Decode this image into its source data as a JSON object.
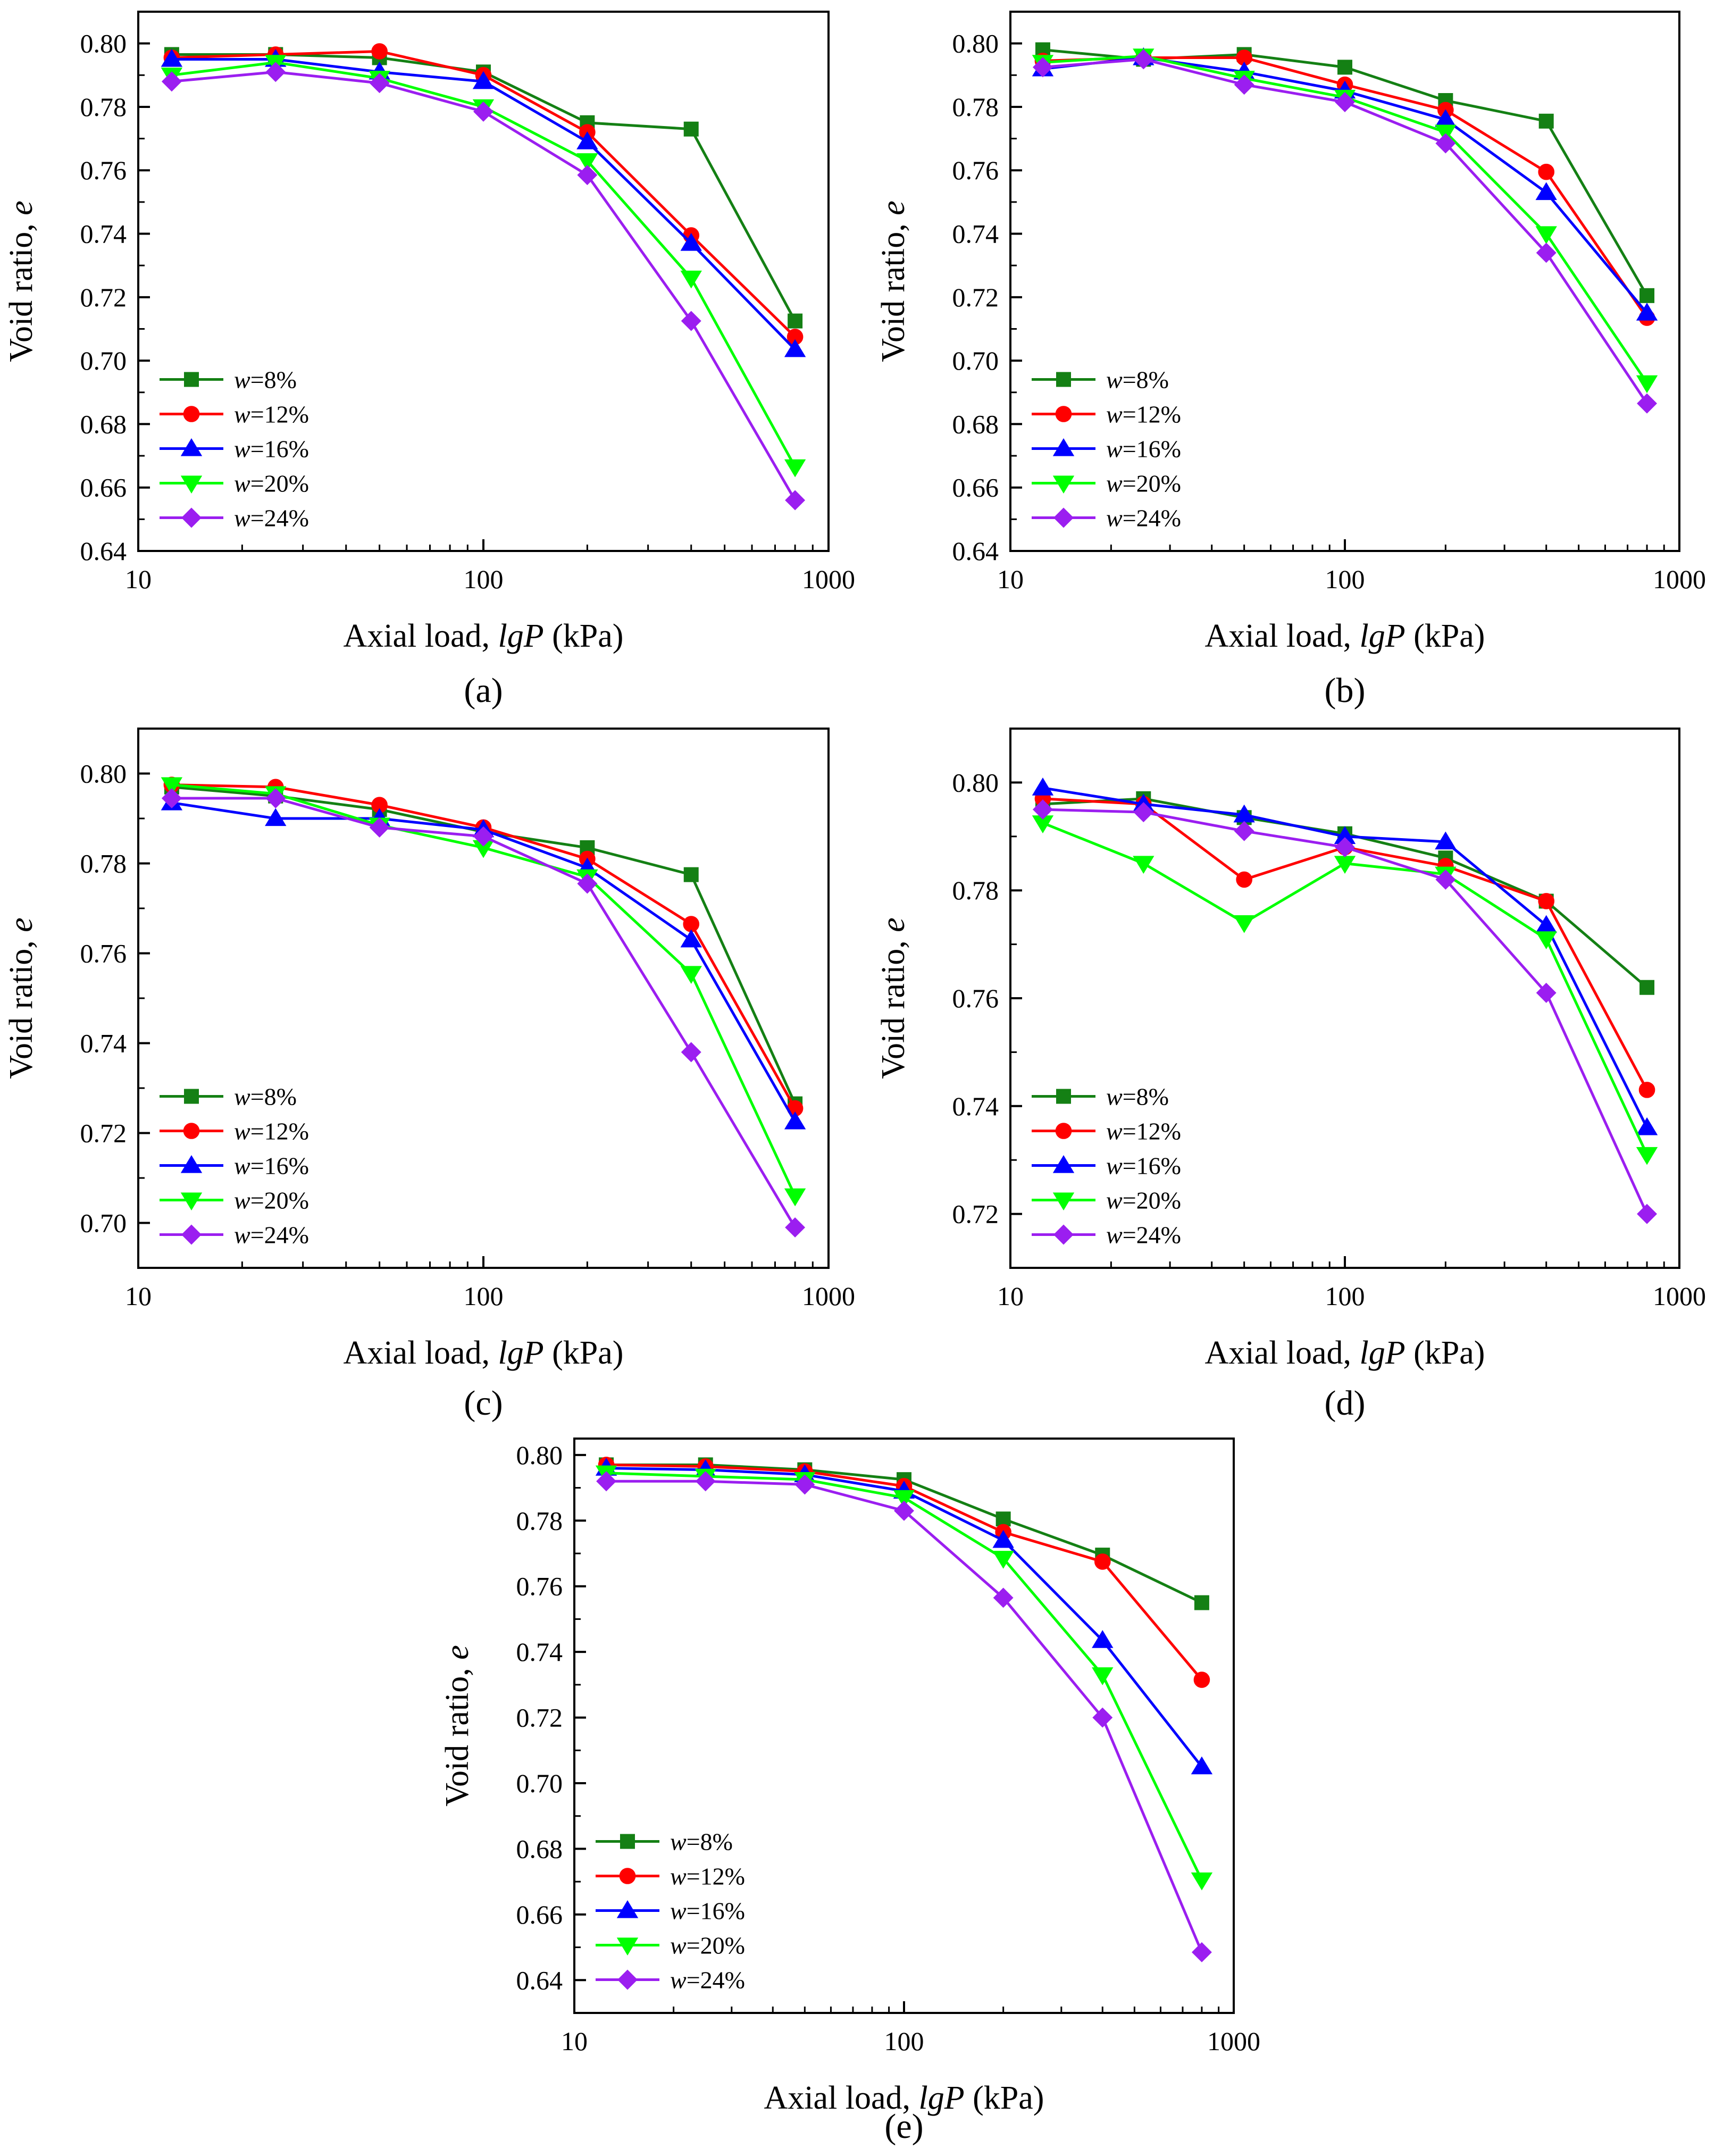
{
  "figure": {
    "panel_labels": [
      "(a)",
      "(b)",
      "(c)",
      "(d)",
      "(e)"
    ]
  },
  "colors": {
    "w8": "#148014",
    "w12": "#ff0000",
    "w16": "#0000ff",
    "w20": "#00ff00",
    "w24": "#9b1ef0"
  },
  "chart_data": [
    {
      "type": "line",
      "panel": "(a)",
      "xlabel": "Axial load, lgP (kPa)",
      "xlabel_parts": [
        "Axial load, ",
        "lgP",
        " (kPa)"
      ],
      "ylabel": "Void ratio, e",
      "ylabel_parts": [
        "Void ratio, ",
        "e"
      ],
      "xscale": "log",
      "xlim": [
        10,
        1000
      ],
      "ylim": [
        0.64,
        0.81
      ],
      "xticks": [
        10,
        100,
        1000
      ],
      "xtick_labels": [
        "10",
        "100",
        "1000"
      ],
      "yticks": [
        0.64,
        0.66,
        0.68,
        0.7,
        0.72,
        0.74,
        0.76,
        0.78,
        0.8
      ],
      "ytick_labels": [
        "0.64",
        "0.66",
        "0.68",
        "0.70",
        "0.72",
        "0.74",
        "0.76",
        "0.78",
        "0.80"
      ],
      "legend_position": "bottom-left",
      "x": [
        12.5,
        25,
        50,
        100,
        200,
        400,
        800
      ],
      "series": [
        {
          "name": "w=8%",
          "name_parts": [
            "w",
            "=8%"
          ],
          "marker": "square",
          "color_key": "w8",
          "values": [
            0.7965,
            0.7965,
            0.7955,
            0.791,
            0.775,
            0.773,
            0.7125
          ]
        },
        {
          "name": "w=12%",
          "name_parts": [
            "w",
            "=12%"
          ],
          "marker": "circle",
          "color_key": "w12",
          "values": [
            0.7955,
            0.7965,
            0.7975,
            0.79,
            0.772,
            0.7395,
            0.7075
          ]
        },
        {
          "name": "w=16%",
          "name_parts": [
            "w",
            "=16%"
          ],
          "marker": "triangle-up",
          "color_key": "w16",
          "values": [
            0.795,
            0.795,
            0.791,
            0.788,
            0.769,
            0.737,
            0.7035
          ]
        },
        {
          "name": "w=20%",
          "name_parts": [
            "w",
            "=20%"
          ],
          "marker": "triangle-down",
          "color_key": "w20",
          "values": [
            0.79,
            0.794,
            0.789,
            0.78,
            0.763,
            0.726,
            0.6665
          ]
        },
        {
          "name": "w=24%",
          "name_parts": [
            "w",
            "=24%"
          ],
          "marker": "diamond",
          "color_key": "w24",
          "values": [
            0.788,
            0.791,
            0.7875,
            0.7785,
            0.7585,
            0.7125,
            0.656
          ]
        }
      ]
    },
    {
      "type": "line",
      "panel": "(b)",
      "xlabel": "Axial load, lgP (kPa)",
      "xlabel_parts": [
        "Axial load, ",
        "lgP",
        " (kPa)"
      ],
      "ylabel": "Void ratio, e",
      "ylabel_parts": [
        "Void ratio, ",
        "e"
      ],
      "xscale": "log",
      "xlim": [
        10,
        1000
      ],
      "ylim": [
        0.64,
        0.81
      ],
      "xticks": [
        10,
        100,
        1000
      ],
      "xtick_labels": [
        "10",
        "100",
        "1000"
      ],
      "yticks": [
        0.64,
        0.66,
        0.68,
        0.7,
        0.72,
        0.74,
        0.76,
        0.78,
        0.8
      ],
      "ytick_labels": [
        "0.64",
        "0.66",
        "0.68",
        "0.70",
        "0.72",
        "0.74",
        "0.76",
        "0.78",
        "0.80"
      ],
      "legend_position": "bottom-left",
      "x": [
        12.5,
        25,
        50,
        100,
        200,
        400,
        800
      ],
      "series": [
        {
          "name": "w=8%",
          "name_parts": [
            "w",
            "=8%"
          ],
          "marker": "square",
          "color_key": "w8",
          "values": [
            0.798,
            0.795,
            0.7965,
            0.7925,
            0.782,
            0.7755,
            0.7205
          ]
        },
        {
          "name": "w=12%",
          "name_parts": [
            "w",
            "=12%"
          ],
          "marker": "circle",
          "color_key": "w12",
          "values": [
            0.7945,
            0.7955,
            0.7955,
            0.787,
            0.779,
            0.7595,
            0.7135
          ]
        },
        {
          "name": "w=16%",
          "name_parts": [
            "w",
            "=16%"
          ],
          "marker": "triangle-up",
          "color_key": "w16",
          "values": [
            0.792,
            0.7955,
            0.791,
            0.785,
            0.776,
            0.753,
            0.715
          ]
        },
        {
          "name": "w=20%",
          "name_parts": [
            "w",
            "=20%"
          ],
          "marker": "triangle-down",
          "color_key": "w20",
          "values": [
            0.794,
            0.796,
            0.789,
            0.783,
            0.772,
            0.74,
            0.693
          ]
        },
        {
          "name": "w=24%",
          "name_parts": [
            "w",
            "=24%"
          ],
          "marker": "diamond",
          "color_key": "w24",
          "values": [
            0.7925,
            0.795,
            0.787,
            0.7815,
            0.7685,
            0.734,
            0.6865
          ]
        }
      ]
    },
    {
      "type": "line",
      "panel": "(c)",
      "xlabel": "Axial load, lgP (kPa)",
      "xlabel_parts": [
        "Axial load, ",
        "lgP",
        " (kPa)"
      ],
      "ylabel": "Void ratio, e",
      "ylabel_parts": [
        "Void ratio, ",
        "e"
      ],
      "xscale": "log",
      "xlim": [
        10,
        1000
      ],
      "ylim": [
        0.69,
        0.81
      ],
      "xticks": [
        10,
        100,
        1000
      ],
      "xtick_labels": [
        "10",
        "100",
        "1000"
      ],
      "yticks": [
        0.7,
        0.72,
        0.74,
        0.76,
        0.78,
        0.8
      ],
      "ytick_labels": [
        "0.70",
        "0.72",
        "0.74",
        "0.76",
        "0.78",
        "0.80"
      ],
      "legend_position": "bottom-left",
      "x": [
        12.5,
        25,
        50,
        100,
        200,
        400,
        800
      ],
      "series": [
        {
          "name": "w=8%",
          "name_parts": [
            "w",
            "=8%"
          ],
          "marker": "square",
          "color_key": "w8",
          "values": [
            0.797,
            0.795,
            0.792,
            0.787,
            0.7835,
            0.7775,
            0.7265
          ]
        },
        {
          "name": "w=12%",
          "name_parts": [
            "w",
            "=12%"
          ],
          "marker": "circle",
          "color_key": "w12",
          "values": [
            0.7975,
            0.797,
            0.793,
            0.788,
            0.781,
            0.7665,
            0.7255
          ]
        },
        {
          "name": "w=16%",
          "name_parts": [
            "w",
            "=16%"
          ],
          "marker": "triangle-up",
          "color_key": "w16",
          "values": [
            0.7935,
            0.79,
            0.79,
            0.7875,
            0.779,
            0.763,
            0.7225
          ]
        },
        {
          "name": "w=20%",
          "name_parts": [
            "w",
            "=20%"
          ],
          "marker": "triangle-down",
          "color_key": "w20",
          "values": [
            0.7975,
            0.7955,
            0.7885,
            0.7835,
            0.777,
            0.7555,
            0.706
          ]
        },
        {
          "name": "w=24%",
          "name_parts": [
            "w",
            "=24%"
          ],
          "marker": "diamond",
          "color_key": "w24",
          "values": [
            0.7945,
            0.7945,
            0.788,
            0.786,
            0.7755,
            0.738,
            0.699
          ]
        }
      ]
    },
    {
      "type": "line",
      "panel": "(d)",
      "xlabel": "Axial load, lgP (kPa)",
      "xlabel_parts": [
        "Axial load, ",
        "lgP",
        " (kPa)"
      ],
      "ylabel": "Void ratio, e",
      "ylabel_parts": [
        "Void ratio, ",
        "e"
      ],
      "xscale": "log",
      "xlim": [
        10,
        1000
      ],
      "ylim": [
        0.71,
        0.81
      ],
      "xticks": [
        10,
        100,
        1000
      ],
      "xtick_labels": [
        "10",
        "100",
        "1000"
      ],
      "yticks": [
        0.72,
        0.74,
        0.76,
        0.78,
        0.8
      ],
      "ytick_labels": [
        "0.72",
        "0.74",
        "0.76",
        "0.78",
        "0.80"
      ],
      "legend_position": "bottom-left",
      "x": [
        12.5,
        25,
        50,
        100,
        200,
        400,
        800
      ],
      "series": [
        {
          "name": "w=8%",
          "name_parts": [
            "w",
            "=8%"
          ],
          "marker": "square",
          "color_key": "w8",
          "values": [
            0.796,
            0.797,
            0.7935,
            0.7905,
            0.786,
            0.778,
            0.762
          ]
        },
        {
          "name": "w=12%",
          "name_parts": [
            "w",
            "=12%"
          ],
          "marker": "circle",
          "color_key": "w12",
          "values": [
            0.797,
            0.796,
            0.782,
            0.788,
            0.7845,
            0.778,
            0.743
          ]
        },
        {
          "name": "w=16%",
          "name_parts": [
            "w",
            "=16%"
          ],
          "marker": "triangle-up",
          "color_key": "w16",
          "values": [
            0.799,
            0.796,
            0.794,
            0.79,
            0.789,
            0.7735,
            0.736
          ]
        },
        {
          "name": "w=20%",
          "name_parts": [
            "w",
            "=20%"
          ],
          "marker": "triangle-down",
          "color_key": "w20",
          "values": [
            0.7925,
            0.785,
            0.774,
            0.785,
            0.783,
            0.771,
            0.731
          ]
        },
        {
          "name": "w=24%",
          "name_parts": [
            "w",
            "=24%"
          ],
          "marker": "diamond",
          "color_key": "w24",
          "values": [
            0.795,
            0.7945,
            0.791,
            0.788,
            0.782,
            0.761,
            0.72
          ]
        }
      ]
    },
    {
      "type": "line",
      "panel": "(e)",
      "xlabel": "Axial load, lgP (kPa)",
      "xlabel_parts": [
        "Axial load, ",
        "lgP",
        " (kPa)"
      ],
      "ylabel": "Void ratio, e",
      "ylabel_parts": [
        "Void ratio, ",
        "e"
      ],
      "xscale": "log",
      "xlim": [
        10,
        1000
      ],
      "ylim": [
        0.63,
        0.805
      ],
      "xticks": [
        10,
        100,
        1000
      ],
      "xtick_labels": [
        "10",
        "100",
        "1000"
      ],
      "yticks": [
        0.64,
        0.66,
        0.68,
        0.7,
        0.72,
        0.74,
        0.76,
        0.78,
        0.8
      ],
      "ytick_labels": [
        "0.64",
        "0.66",
        "0.68",
        "0.70",
        "0.72",
        "0.74",
        "0.76",
        "0.78",
        "0.80"
      ],
      "legend_position": "bottom-left",
      "x": [
        12.5,
        25,
        50,
        100,
        200,
        400,
        800
      ],
      "series": [
        {
          "name": "w=8%",
          "name_parts": [
            "w",
            "=8%"
          ],
          "marker": "square",
          "color_key": "w8",
          "values": [
            0.797,
            0.797,
            0.7955,
            0.7925,
            0.7805,
            0.7695,
            0.755
          ]
        },
        {
          "name": "w=12%",
          "name_parts": [
            "w",
            "=12%"
          ],
          "marker": "circle",
          "color_key": "w12",
          "values": [
            0.797,
            0.7965,
            0.795,
            0.7905,
            0.7765,
            0.7675,
            0.7315
          ]
        },
        {
          "name": "w=16%",
          "name_parts": [
            "w",
            "=16%"
          ],
          "marker": "triangle-up",
          "color_key": "w16",
          "values": [
            0.796,
            0.7955,
            0.794,
            0.789,
            0.774,
            0.7435,
            0.705
          ]
        },
        {
          "name": "w=20%",
          "name_parts": [
            "w",
            "=20%"
          ],
          "marker": "triangle-down",
          "color_key": "w20",
          "values": [
            0.7945,
            0.7935,
            0.7925,
            0.787,
            0.7685,
            0.733,
            0.6705
          ]
        },
        {
          "name": "w=24%",
          "name_parts": [
            "w",
            "=24%"
          ],
          "marker": "diamond",
          "color_key": "w24",
          "values": [
            0.792,
            0.792,
            0.791,
            0.783,
            0.7565,
            0.72,
            0.6485
          ]
        }
      ]
    }
  ]
}
